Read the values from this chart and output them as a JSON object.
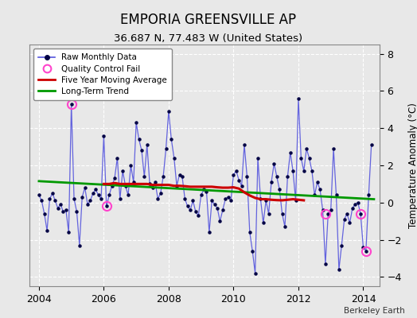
{
  "title": "EMPORIA GREENSVILLE AP",
  "subtitle": "36.687 N, 77.483 W (United States)",
  "ylabel": "Temperature Anomaly (°C)",
  "credit": "Berkeley Earth",
  "ylim": [
    -4.5,
    8.5
  ],
  "xlim": [
    2003.7,
    2014.5
  ],
  "xticks": [
    2004,
    2006,
    2008,
    2010,
    2012,
    2014
  ],
  "yticks": [
    -4,
    -2,
    0,
    2,
    4,
    6,
    8
  ],
  "bg_color": "#e8e8e8",
  "plot_bg_color": "#e8e8e8",
  "raw_color": "#5555dd",
  "raw_marker_color": "#000044",
  "moving_avg_color": "#cc0000",
  "trend_color": "#009900",
  "qc_fail_color": "#ff44cc",
  "raw_data": {
    "times": [
      2004.0,
      2004.083,
      2004.167,
      2004.25,
      2004.333,
      2004.417,
      2004.5,
      2004.583,
      2004.667,
      2004.75,
      2004.833,
      2004.917,
      2005.0,
      2005.083,
      2005.167,
      2005.25,
      2005.333,
      2005.417,
      2005.5,
      2005.583,
      2005.667,
      2005.75,
      2005.833,
      2005.917,
      2006.0,
      2006.083,
      2006.167,
      2006.25,
      2006.333,
      2006.417,
      2006.5,
      2006.583,
      2006.667,
      2006.75,
      2006.833,
      2006.917,
      2007.0,
      2007.083,
      2007.167,
      2007.25,
      2007.333,
      2007.417,
      2007.5,
      2007.583,
      2007.667,
      2007.75,
      2007.833,
      2007.917,
      2008.0,
      2008.083,
      2008.167,
      2008.25,
      2008.333,
      2008.417,
      2008.5,
      2008.583,
      2008.667,
      2008.75,
      2008.833,
      2008.917,
      2009.0,
      2009.083,
      2009.167,
      2009.25,
      2009.333,
      2009.417,
      2009.5,
      2009.583,
      2009.667,
      2009.75,
      2009.833,
      2009.917,
      2010.0,
      2010.083,
      2010.167,
      2010.25,
      2010.333,
      2010.417,
      2010.5,
      2010.583,
      2010.667,
      2010.75,
      2010.833,
      2010.917,
      2011.0,
      2011.083,
      2011.167,
      2011.25,
      2011.333,
      2011.417,
      2011.5,
      2011.583,
      2011.667,
      2011.75,
      2011.833,
      2011.917,
      2012.0,
      2012.083,
      2012.167,
      2012.25,
      2012.333,
      2012.417,
      2012.5,
      2012.583,
      2012.667,
      2012.75,
      2012.833,
      2012.917,
      2013.0,
      2013.083,
      2013.167,
      2013.25,
      2013.333,
      2013.417,
      2013.5,
      2013.583,
      2013.667,
      2013.75,
      2013.833,
      2013.917,
      2014.0,
      2014.083,
      2014.167,
      2014.25
    ],
    "values": [
      0.4,
      0.1,
      -0.6,
      -1.5,
      0.2,
      0.5,
      0.1,
      -0.3,
      -0.1,
      -0.5,
      -0.4,
      -1.6,
      5.3,
      0.2,
      -0.5,
      -2.3,
      0.3,
      0.8,
      -0.1,
      0.1,
      0.5,
      0.7,
      0.4,
      0.2,
      3.6,
      -0.2,
      0.4,
      0.9,
      1.3,
      2.4,
      0.2,
      1.7,
      0.9,
      0.4,
      2.0,
      1.1,
      4.3,
      3.4,
      2.8,
      1.4,
      3.1,
      1.0,
      0.8,
      1.1,
      0.2,
      0.5,
      1.4,
      2.9,
      4.9,
      3.4,
      2.4,
      0.9,
      1.5,
      1.4,
      0.2,
      -0.2,
      -0.4,
      0.1,
      -0.5,
      -0.7,
      0.4,
      0.7,
      0.6,
      -1.6,
      0.1,
      -0.1,
      -0.3,
      -1.0,
      -0.4,
      0.2,
      0.3,
      0.1,
      1.5,
      1.7,
      1.2,
      0.9,
      3.1,
      1.4,
      -1.6,
      -2.6,
      -3.8,
      2.4,
      0.2,
      -1.1,
      0.1,
      -0.6,
      1.1,
      2.1,
      1.4,
      0.7,
      -0.6,
      -1.3,
      1.4,
      2.7,
      1.7,
      0.1,
      5.6,
      2.4,
      1.7,
      2.9,
      2.4,
      1.7,
      0.4,
      1.1,
      0.7,
      -0.4,
      -3.3,
      -0.6,
      -0.4,
      2.9,
      0.4,
      -3.6,
      -2.3,
      -0.9,
      -0.6,
      -1.1,
      -0.3,
      -0.1,
      0.0,
      -0.6,
      -2.4,
      -2.6,
      0.4,
      3.1
    ]
  },
  "qc_fail_points": [
    [
      2005.0,
      5.3
    ],
    [
      2006.083,
      -0.2
    ],
    [
      2012.833,
      -0.6
    ],
    [
      2013.917,
      -0.6
    ],
    [
      2014.083,
      -2.6
    ]
  ],
  "moving_avg": {
    "times": [
      2006.0,
      2006.167,
      2006.333,
      2006.5,
      2006.667,
      2006.833,
      2007.0,
      2007.167,
      2007.333,
      2007.5,
      2007.667,
      2007.833,
      2008.0,
      2008.167,
      2008.333,
      2008.5,
      2008.667,
      2008.833,
      2009.0,
      2009.167,
      2009.333,
      2009.5,
      2009.667,
      2009.833,
      2010.0,
      2010.167,
      2010.333,
      2010.5,
      2010.667,
      2010.833,
      2011.0,
      2011.167,
      2011.333,
      2011.5,
      2011.667,
      2011.833,
      2012.0,
      2012.167
    ],
    "values": [
      1.0,
      1.0,
      1.05,
      1.0,
      1.0,
      1.0,
      1.0,
      1.0,
      1.0,
      0.95,
      0.95,
      0.95,
      0.95,
      0.9,
      0.9,
      0.88,
      0.85,
      0.85,
      0.85,
      0.85,
      0.85,
      0.82,
      0.8,
      0.8,
      0.82,
      0.75,
      0.55,
      0.38,
      0.25,
      0.18,
      0.18,
      0.15,
      0.13,
      0.12,
      0.15,
      0.18,
      0.15,
      0.12
    ]
  },
  "trend": {
    "times": [
      2004.0,
      2014.33
    ],
    "values": [
      1.15,
      0.18
    ]
  }
}
